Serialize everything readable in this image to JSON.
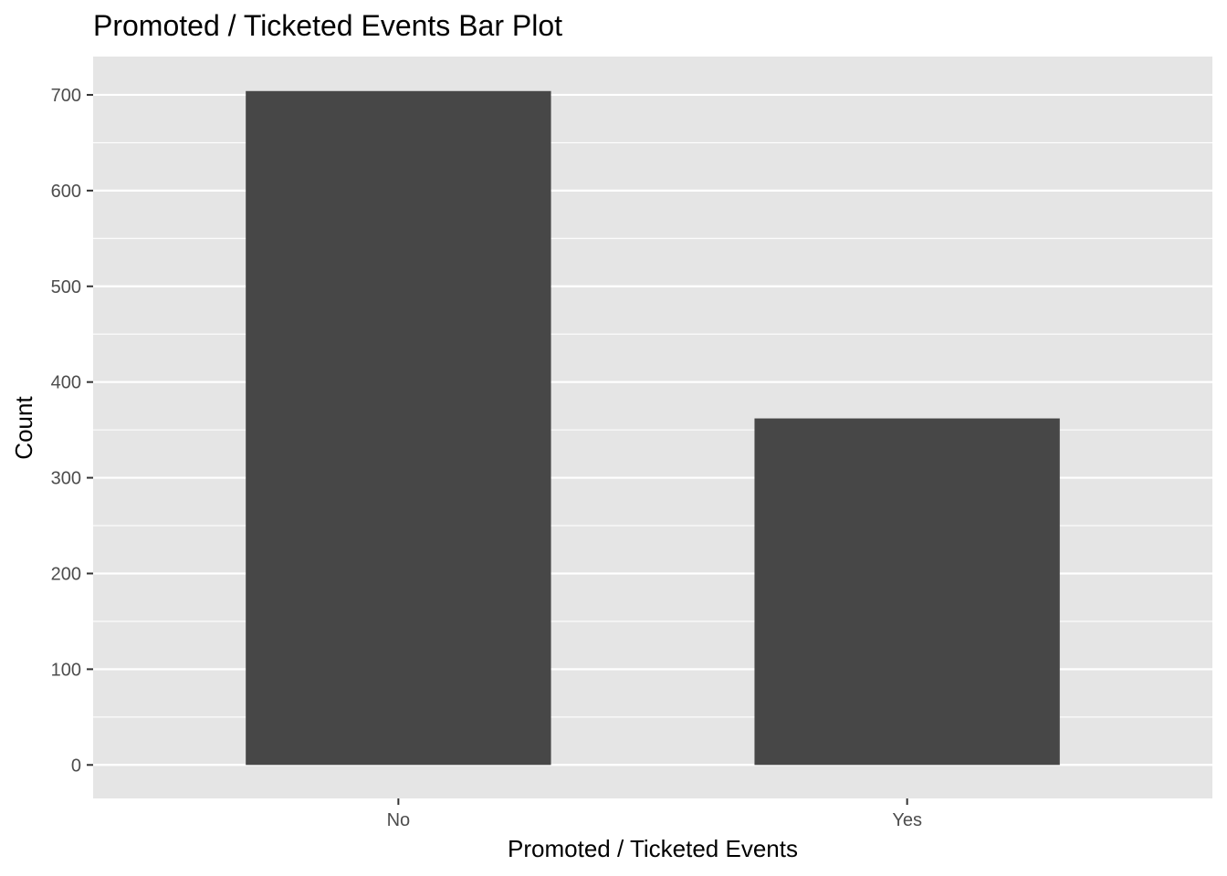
{
  "colors": {
    "panel_background": "#e5e5e5",
    "grid": "#ffffff",
    "bar_fill": "#474747",
    "tick": "#333333",
    "tick_label": "#4d4d4d"
  },
  "chart_data": {
    "type": "bar",
    "title": "Promoted / Ticketed Events Bar Plot",
    "xlabel": "Promoted / Ticketed Events",
    "ylabel": "Count",
    "categories": [
      "No",
      "Yes"
    ],
    "values": [
      704,
      362
    ],
    "ylim": [
      -35,
      740
    ],
    "yticks": [
      0,
      100,
      200,
      300,
      400,
      500,
      600,
      700
    ],
    "grid": true,
    "legend": "none"
  }
}
